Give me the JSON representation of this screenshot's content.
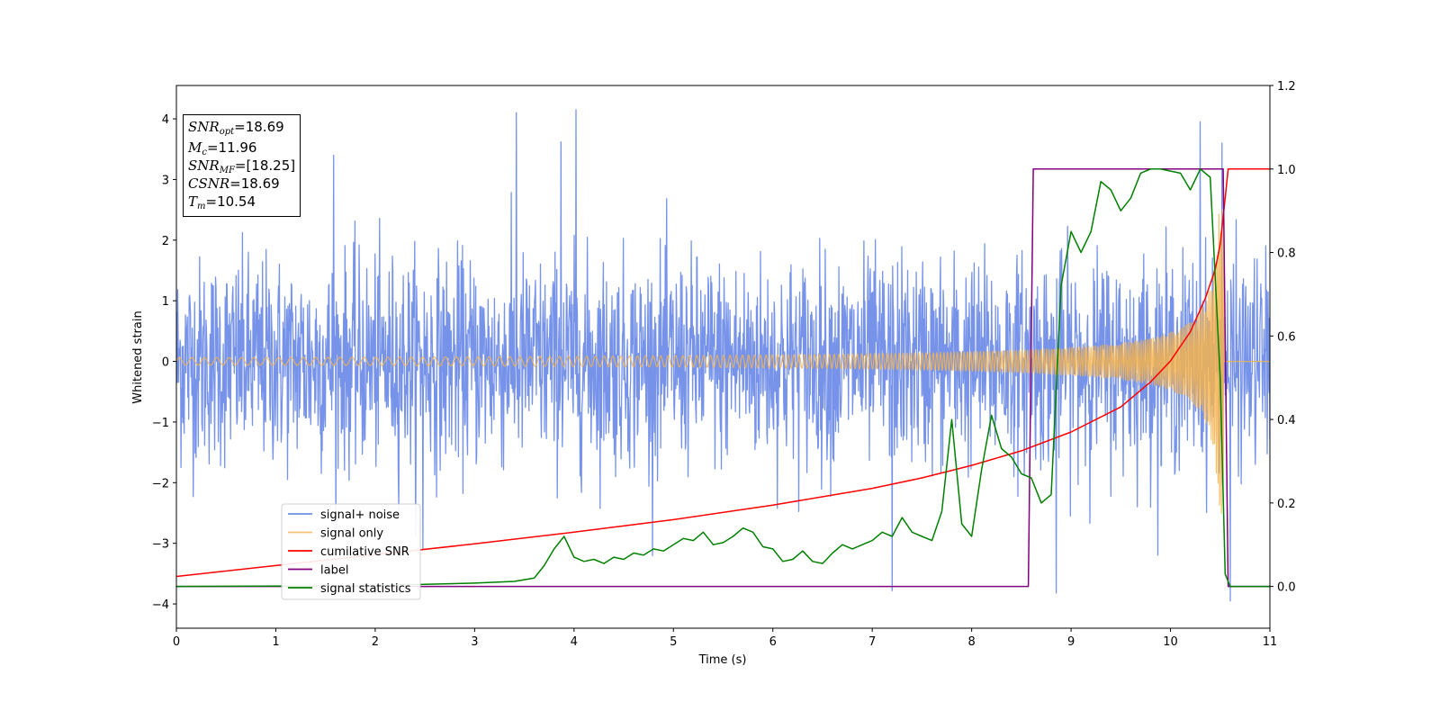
{
  "colors": {
    "noise": "#6f8de8",
    "signal": "#f5b34f",
    "csnr": "#ff0000",
    "label": "#800080",
    "stat": "#008000"
  },
  "info": {
    "snr_opt": {
      "sym": "SNR",
      "sub": "opt",
      "value": "=18.69"
    },
    "mc": {
      "sym": "M",
      "sub": "c",
      "value": "=11.96"
    },
    "snr_mf": {
      "sym": "SNR",
      "sub": "MF",
      "value": "=[18.25]"
    },
    "csnr": {
      "sym": "CSNR",
      "value": "=18.69"
    },
    "tm": {
      "sym": "T",
      "sub": "m",
      "value": "=10.54"
    }
  },
  "chart_data": {
    "type": "line",
    "title": "",
    "xlabel": "Time (s)",
    "ylabel": "Whitened strain",
    "xlim": [
      0,
      11
    ],
    "ylim": [
      -4.4,
      4.55
    ],
    "y2lim": [
      -0.1,
      1.2
    ],
    "x_ticks": [
      "0",
      "1",
      "2",
      "3",
      "4",
      "5",
      "6",
      "7",
      "8",
      "9",
      "10",
      "11"
    ],
    "y_ticks": [
      "−4",
      "−3",
      "−2",
      "−1",
      "0",
      "1",
      "2",
      "3",
      "4"
    ],
    "y_tick_values": [
      -4,
      -3,
      -2,
      -1,
      0,
      1,
      2,
      3,
      4
    ],
    "y2_ticks": [
      "0.0",
      "0.2",
      "0.4",
      "0.6",
      "0.8",
      "1.0",
      "1.2"
    ],
    "y2_tick_values": [
      0.0,
      0.2,
      0.4,
      0.6,
      0.8,
      1.0,
      1.2
    ],
    "grid": false,
    "legend_position": "lower-left",
    "series": [
      {
        "name": "signal+ noise",
        "axis": "left",
        "kind": "noise",
        "sigma": 0.85,
        "duration": 11,
        "merger_time": 10.54,
        "spikes": [
          [
            3.42,
            4.1
          ],
          [
            4.02,
            4.15
          ],
          [
            1.58,
            3.4
          ],
          [
            3.87,
            3.62
          ],
          [
            10.3,
            3.95
          ],
          [
            10.52,
            3.6
          ],
          [
            7.2,
            -3.78
          ],
          [
            8.85,
            -3.82
          ],
          [
            10.6,
            -3.95
          ],
          [
            2.48,
            -3.1
          ]
        ]
      },
      {
        "name": "signal only",
        "axis": "left",
        "kind": "chirp",
        "t_merger": 10.54,
        "amp_peak": 2.55,
        "amp_start": 0.06,
        "cycles_per_sec_start": 8,
        "cycles_per_sec_end": 60
      },
      {
        "name": "cumilative SNR",
        "axis": "right",
        "x": [
          0,
          1,
          2,
          3,
          4,
          5,
          6,
          7,
          7.5,
          8,
          8.5,
          9,
          9.5,
          9.8,
          10,
          10.2,
          10.35,
          10.45,
          10.5,
          10.55,
          10.58,
          11
        ],
        "y": [
          0.024,
          0.05,
          0.076,
          0.102,
          0.13,
          0.16,
          0.195,
          0.235,
          0.26,
          0.29,
          0.325,
          0.37,
          0.43,
          0.49,
          0.54,
          0.61,
          0.69,
          0.76,
          0.82,
          0.93,
          1.0,
          1.0
        ]
      },
      {
        "name": "label",
        "axis": "right",
        "x": [
          0,
          8.57,
          8.62,
          10.53,
          10.58,
          11
        ],
        "y": [
          0,
          0,
          1,
          1,
          0,
          0
        ]
      },
      {
        "name": "signal statistics",
        "axis": "right",
        "x": [
          0,
          2,
          2.5,
          3,
          3.4,
          3.6,
          3.7,
          3.8,
          3.9,
          4.0,
          4.1,
          4.2,
          4.3,
          4.4,
          4.5,
          4.6,
          4.7,
          4.8,
          4.9,
          5.0,
          5.1,
          5.2,
          5.3,
          5.4,
          5.5,
          5.6,
          5.7,
          5.8,
          5.9,
          6.0,
          6.1,
          6.2,
          6.3,
          6.4,
          6.5,
          6.6,
          6.7,
          6.8,
          6.9,
          7.0,
          7.1,
          7.2,
          7.3,
          7.4,
          7.5,
          7.6,
          7.7,
          7.8,
          7.9,
          8.0,
          8.1,
          8.2,
          8.3,
          8.4,
          8.5,
          8.6,
          8.7,
          8.8,
          8.9,
          9.0,
          9.1,
          9.2,
          9.3,
          9.4,
          9.5,
          9.6,
          9.7,
          9.8,
          9.9,
          10.0,
          10.1,
          10.2,
          10.3,
          10.4,
          10.5,
          10.55,
          10.6,
          11
        ],
        "y": [
          0,
          0.002,
          0.005,
          0.008,
          0.012,
          0.02,
          0.05,
          0.09,
          0.12,
          0.07,
          0.06,
          0.065,
          0.055,
          0.07,
          0.065,
          0.08,
          0.075,
          0.09,
          0.085,
          0.1,
          0.115,
          0.11,
          0.13,
          0.1,
          0.105,
          0.12,
          0.14,
          0.13,
          0.095,
          0.09,
          0.06,
          0.065,
          0.085,
          0.06,
          0.055,
          0.08,
          0.1,
          0.09,
          0.1,
          0.11,
          0.13,
          0.12,
          0.165,
          0.13,
          0.12,
          0.11,
          0.18,
          0.4,
          0.15,
          0.12,
          0.28,
          0.41,
          0.33,
          0.31,
          0.27,
          0.26,
          0.2,
          0.22,
          0.72,
          0.85,
          0.8,
          0.85,
          0.97,
          0.95,
          0.9,
          0.93,
          0.99,
          1.0,
          1.0,
          0.995,
          0.99,
          0.95,
          1.0,
          0.98,
          0.5,
          0.03,
          0.0,
          0.0
        ]
      }
    ]
  }
}
